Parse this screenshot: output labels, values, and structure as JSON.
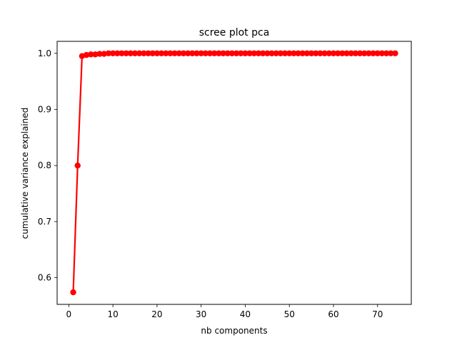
{
  "chart_data": {
    "type": "line",
    "title": "scree plot pca",
    "xlabel": "nb components",
    "ylabel": "cumulative variance explained",
    "xlim": [
      -2.65,
      77.65
    ],
    "ylim": [
      0.5525,
      1.0213
    ],
    "xticks": [
      0,
      10,
      20,
      30,
      40,
      50,
      60,
      70
    ],
    "yticks": [
      0.6,
      0.7,
      0.8,
      0.9,
      1.0
    ],
    "xtick_labels": [
      "0",
      "10",
      "20",
      "30",
      "40",
      "50",
      "60",
      "70"
    ],
    "ytick_labels": [
      "0.6",
      "0.7",
      "0.8",
      "0.9",
      "1.0"
    ],
    "grid": false,
    "legend": "none",
    "series": [
      {
        "color": "#ff0000",
        "marker": "circle",
        "x": [
          1,
          2,
          3,
          4,
          5,
          6,
          7,
          8,
          9,
          10,
          11,
          12,
          13,
          14,
          15,
          16,
          17,
          18,
          19,
          20,
          21,
          22,
          23,
          24,
          25,
          26,
          27,
          28,
          29,
          30,
          31,
          32,
          33,
          34,
          35,
          36,
          37,
          38,
          39,
          40,
          41,
          42,
          43,
          44,
          45,
          46,
          47,
          48,
          49,
          50,
          51,
          52,
          53,
          54,
          55,
          56,
          57,
          58,
          59,
          60,
          61,
          62,
          63,
          64,
          65,
          66,
          67,
          68,
          69,
          70,
          71,
          72,
          73,
          74
        ],
        "y": [
          0.574,
          0.8,
          0.995,
          0.997,
          0.998,
          0.998,
          0.999,
          0.999,
          1.0,
          1.0,
          1.0,
          1.0,
          1.0,
          1.0,
          1.0,
          1.0,
          1.0,
          1.0,
          1.0,
          1.0,
          1.0,
          1.0,
          1.0,
          1.0,
          1.0,
          1.0,
          1.0,
          1.0,
          1.0,
          1.0,
          1.0,
          1.0,
          1.0,
          1.0,
          1.0,
          1.0,
          1.0,
          1.0,
          1.0,
          1.0,
          1.0,
          1.0,
          1.0,
          1.0,
          1.0,
          1.0,
          1.0,
          1.0,
          1.0,
          1.0,
          1.0,
          1.0,
          1.0,
          1.0,
          1.0,
          1.0,
          1.0,
          1.0,
          1.0,
          1.0,
          1.0,
          1.0,
          1.0,
          1.0,
          1.0,
          1.0,
          1.0,
          1.0,
          1.0,
          1.0,
          1.0,
          1.0,
          1.0,
          1.0
        ]
      }
    ]
  }
}
